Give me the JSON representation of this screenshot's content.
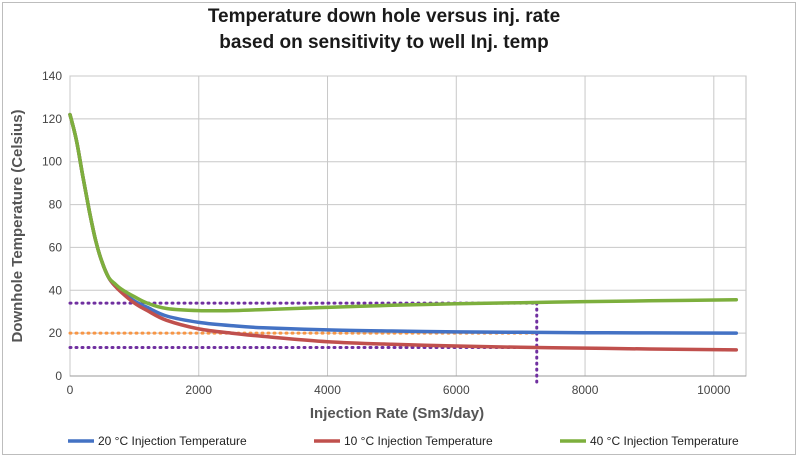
{
  "chart_data": {
    "type": "line",
    "title": [
      "Temperature down hole versus inj. rate",
      "based on sensitivity to well Inj. temp"
    ],
    "xlabel": "Injection Rate (Sm3/day)",
    "ylabel": "Downhole Temperature (Celsius)",
    "xlim": [
      0,
      10500
    ],
    "ylim": [
      0,
      140
    ],
    "xticks": [
      0,
      2000,
      4000,
      6000,
      8000,
      10000
    ],
    "yticks": [
      0,
      20,
      40,
      60,
      80,
      100,
      120,
      140
    ],
    "grid": true,
    "legend_position": "bottom",
    "series": [
      {
        "name": "20 °C Injection Temperature",
        "color": "#4472C4",
        "x": [
          0,
          100,
          200,
          300,
          400,
          500,
          600,
          700,
          800,
          1000,
          1200,
          1500,
          2000,
          2500,
          3000,
          4000,
          5000,
          6000,
          7000,
          8000,
          9000,
          10350
        ],
        "y": [
          122,
          110,
          93,
          77,
          63,
          53,
          46,
          42,
          39.5,
          35,
          32,
          28,
          25,
          23.5,
          22.5,
          21.5,
          21,
          20.6,
          20.4,
          20.2,
          20.1,
          20
        ]
      },
      {
        "name": "10 °C Injection Temperature",
        "color": "#C0504D",
        "x": [
          0,
          100,
          200,
          300,
          400,
          500,
          600,
          700,
          800,
          1000,
          1200,
          1500,
          2000,
          2500,
          3000,
          4000,
          5000,
          6000,
          7000,
          8000,
          9000,
          10350
        ],
        "y": [
          122,
          110,
          93,
          77,
          63,
          53,
          46,
          42,
          39,
          34,
          30.5,
          26,
          22,
          20,
          18.5,
          16,
          14.8,
          14,
          13.4,
          13,
          12.6,
          12.2
        ]
      },
      {
        "name": "40 °C Injection Temperature",
        "color": "#7DAF3D",
        "x": [
          0,
          100,
          200,
          300,
          400,
          500,
          600,
          700,
          800,
          1000,
          1200,
          1500,
          2000,
          2500,
          3000,
          4000,
          5000,
          6000,
          7000,
          8000,
          9000,
          10350
        ],
        "y": [
          122,
          110,
          93,
          77,
          63,
          53,
          46,
          43,
          40.5,
          37,
          34,
          31.5,
          30.5,
          30.5,
          31,
          32,
          33,
          33.7,
          34.2,
          34.7,
          35.1,
          35.6
        ]
      }
    ],
    "reference_lines": [
      {
        "kind": "horizontal",
        "y": 34,
        "x_from": 0,
        "x_to": 7250,
        "color": "#7030A0",
        "style": "dotted"
      },
      {
        "kind": "horizontal",
        "y": 20,
        "x_from": 0,
        "x_to": 7250,
        "color": "#F79646",
        "style": "dotted"
      },
      {
        "kind": "horizontal",
        "y": 13.3,
        "x_from": 0,
        "x_to": 7250,
        "color": "#7030A0",
        "style": "dotted"
      },
      {
        "kind": "vertical",
        "x": 7250,
        "y_from": 0,
        "y_to": 34,
        "color": "#7030A0",
        "style": "dotted"
      }
    ]
  }
}
